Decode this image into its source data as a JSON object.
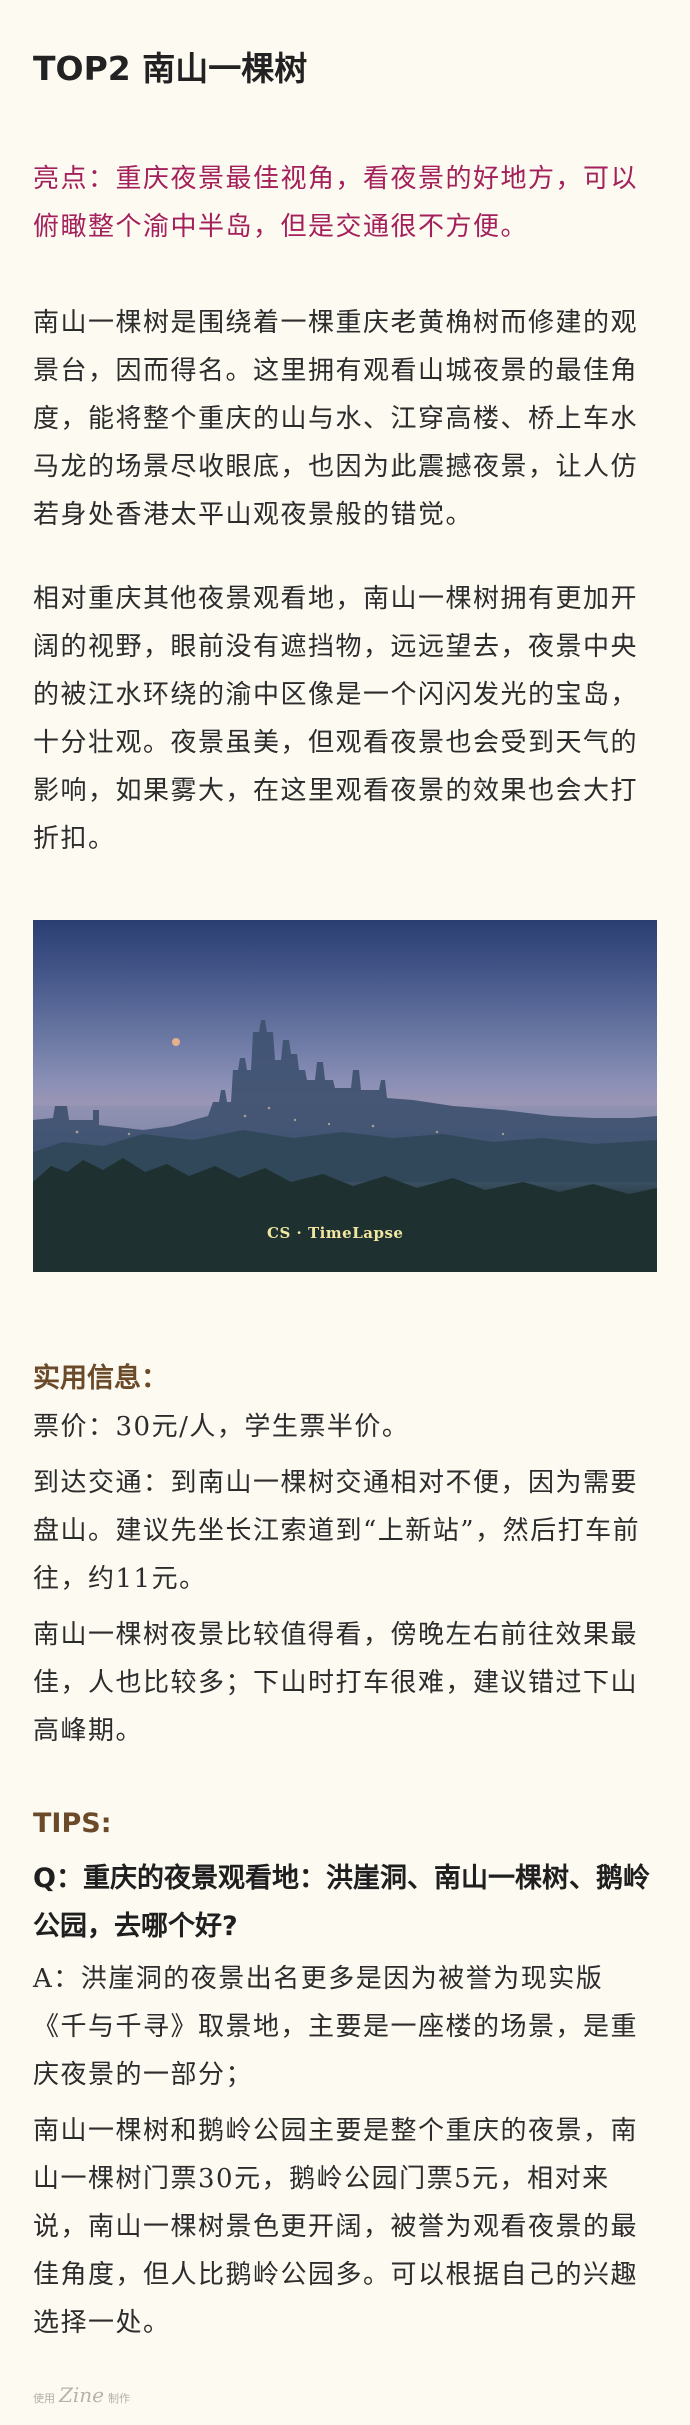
{
  "title": "TOP2 南山一棵树",
  "highlight": "亮点：重庆夜景最佳视角，看夜景的好地方，可以俯瞰整个渝中半岛，但是交通很不方便。",
  "intro_paragraphs": [
    "南山一棵树是围绕着一棵重庆老黄桷树而修建的观景台，因而得名。这里拥有观看山城夜景的最佳角度，能将整个重庆的山与水、江穿高楼、桥上车水马龙的场景尽收眼底，也因为此震撼夜景，让人仿若身处香港太平山观夜景般的错觉。",
    "相对重庆其他夜景观看地，南山一棵树拥有更加开阔的视野，眼前没有遮挡物，远远望去，夜景中央的被江水环绕的渝中区像是一个闪闪发光的宝岛，十分壮观。夜景虽美，但观看夜景也会受到天气的影响，如果雾大，在这里观看夜景的效果也会大打折扣。"
  ],
  "photo": {
    "watermark": "CS · TimeLapse"
  },
  "info": {
    "heading": "实用信息：",
    "paragraphs": [
      "票价：30元/人，学生票半价。",
      "到达交通：到南山一棵树交通相对不便，因为需要盘山。建议先坐长江索道到“上新站”，然后打车前往，约11元。",
      "南山一棵树夜景比较值得看，傍晚左右前往效果最佳，人也比较多；下山时打车很难，建议错过下山高峰期。"
    ]
  },
  "tips": {
    "heading": "TIPS:",
    "question": "Q：重庆的夜景观看地：洪崖洞、南山一棵树、鹅岭公园，去哪个好?",
    "answers": [
      "A：洪崖洞的夜景出名更多是因为被誉为现实版《千与千寻》取景地，主要是一座楼的场景，是重庆夜景的一部分；",
      "南山一棵树和鹅岭公园主要是整个重庆的夜景，南山一棵树门票30元，鹅岭公园门票5元，相对来说，南山一棵树景色更开阔，被誉为观看夜景的最佳角度，但人比鹅岭公园多。可以根据自己的兴趣选择一处。"
    ]
  },
  "footer": {
    "prefix": "使用",
    "brand": "Zine",
    "suffix": "制作"
  },
  "colors": {
    "background": "#fdfaf2",
    "highlight": "#a4205a",
    "section_heading": "#6b4a2a",
    "watermark": "#f1e5a0"
  }
}
